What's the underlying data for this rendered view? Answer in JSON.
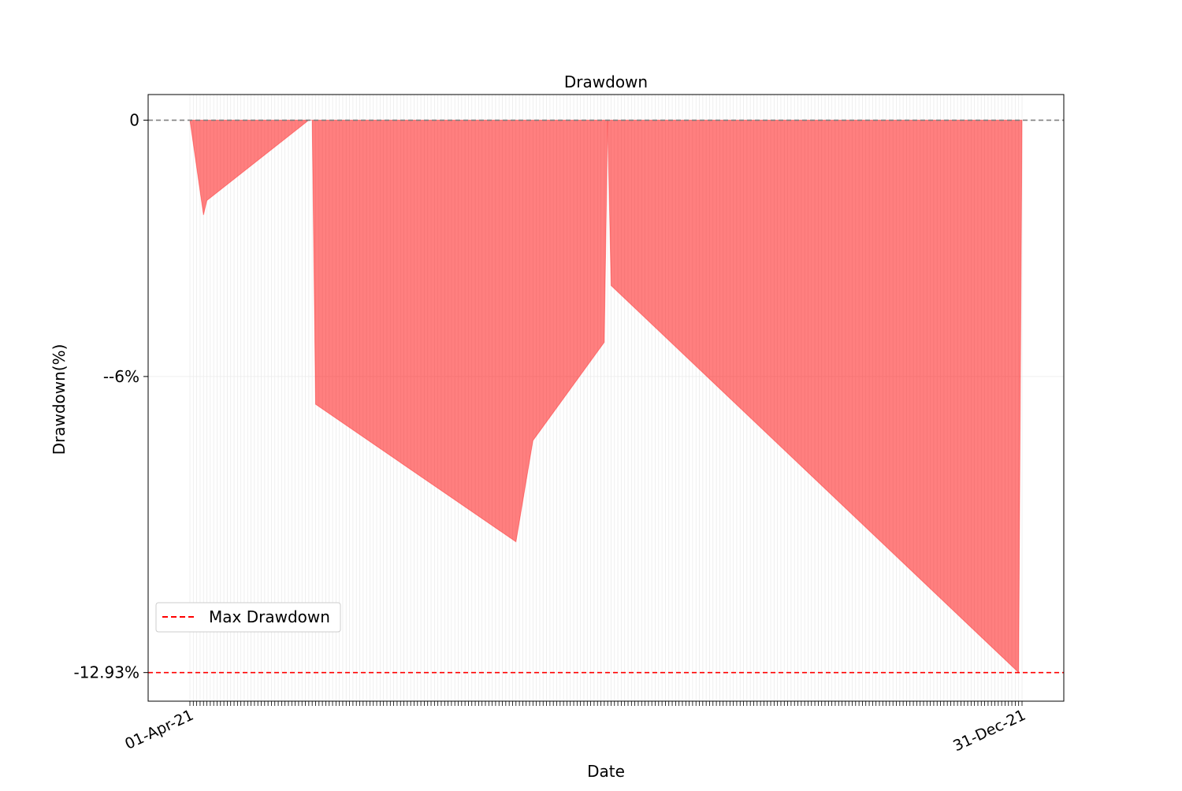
{
  "chart_data": {
    "type": "area",
    "title": "Drawdown",
    "xlabel": "Date",
    "ylabel": "Drawdown(%)",
    "ylim": [
      -13.6,
      0.6
    ],
    "yticks": [
      {
        "value": 0,
        "label": "0"
      },
      {
        "value": -6,
        "label": "--6%"
      },
      {
        "value": -12.93,
        "label": "-12.93%"
      }
    ],
    "x_labels_visible": [
      "01-Apr-21",
      "31-Dec-21"
    ],
    "x_count": 246,
    "series": [
      {
        "color": "#ff0000",
        "fill_opacity": 0.5,
        "points": [
          [
            0,
            0
          ],
          [
            4,
            -2.22
          ],
          [
            5,
            -1.88
          ],
          [
            35,
            0
          ],
          [
            36,
            0
          ],
          [
            37,
            -6.65
          ],
          [
            96,
            -9.87
          ],
          [
            101,
            -7.5
          ],
          [
            122,
            -5.2
          ],
          [
            123,
            0
          ],
          [
            124,
            -3.87
          ],
          [
            244,
            -12.93
          ],
          [
            245,
            0
          ]
        ]
      }
    ],
    "reference_lines": [
      {
        "value": 0,
        "color": "#808080",
        "style": "dashed"
      },
      {
        "value": -12.93,
        "color": "#ff0000",
        "style": "dashed",
        "legend": "Max Drawdown"
      }
    ],
    "legend": {
      "position": "lower-left",
      "entries": [
        {
          "label": "Max Drawdown",
          "color": "#ff0000",
          "style": "dashed"
        }
      ]
    },
    "grid": true
  }
}
